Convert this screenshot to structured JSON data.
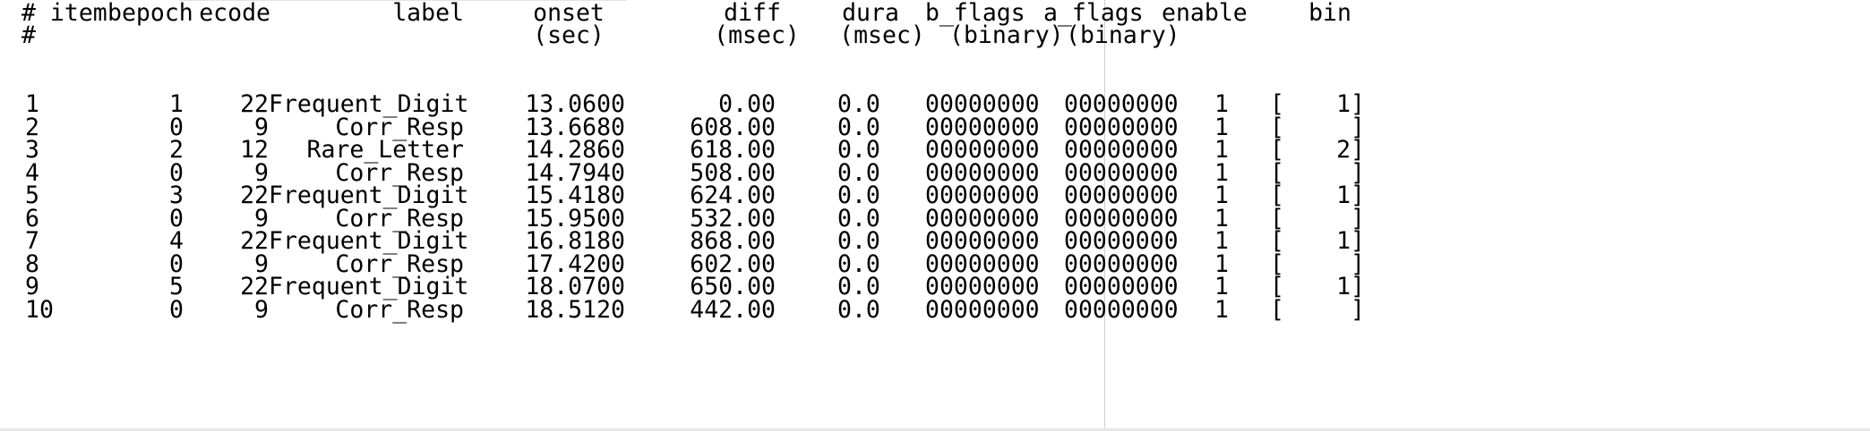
{
  "header": {
    "row1": {
      "item": "# item",
      "bepoch": "bepoch",
      "ecode": "ecode",
      "label": "label",
      "onset": "onset",
      "diff": "diff",
      "dura": "dura",
      "b_flags": "b_flags",
      "a_flags": "a_flags",
      "enable": "enable",
      "bin": "bin"
    },
    "row2": {
      "item": "#",
      "onset": "(sec)",
      "diff": "(msec)",
      "dura": "(msec)",
      "b_flags": "(binary)",
      "a_flags": "(binary)"
    }
  },
  "rows": [
    {
      "item": "1",
      "bepoch": "1",
      "ecode": "22",
      "label": "Frequent_Digit",
      "onset": "13.0600",
      "diff": "0.00",
      "dura": "0.0",
      "b_flags": "00000000",
      "a_flags": "00000000",
      "enable": "1",
      "bin_open": "[",
      "bin_val": "1]"
    },
    {
      "item": "2",
      "bepoch": "0",
      "ecode": "9",
      "label": "Corr_Resp",
      "onset": "13.6680",
      "diff": "608.00",
      "dura": "0.0",
      "b_flags": "00000000",
      "a_flags": "00000000",
      "enable": "1",
      "bin_open": "[",
      "bin_val": "]"
    },
    {
      "item": "3",
      "bepoch": "2",
      "ecode": "12",
      "label": "Rare_Letter",
      "onset": "14.2860",
      "diff": "618.00",
      "dura": "0.0",
      "b_flags": "00000000",
      "a_flags": "00000000",
      "enable": "1",
      "bin_open": "[",
      "bin_val": "2]"
    },
    {
      "item": "4",
      "bepoch": "0",
      "ecode": "9",
      "label": "Corr_Resp",
      "onset": "14.7940",
      "diff": "508.00",
      "dura": "0.0",
      "b_flags": "00000000",
      "a_flags": "00000000",
      "enable": "1",
      "bin_open": "[",
      "bin_val": "]"
    },
    {
      "item": "5",
      "bepoch": "3",
      "ecode": "22",
      "label": "Frequent_Digit",
      "onset": "15.4180",
      "diff": "624.00",
      "dura": "0.0",
      "b_flags": "00000000",
      "a_flags": "00000000",
      "enable": "1",
      "bin_open": "[",
      "bin_val": "1]"
    },
    {
      "item": "6",
      "bepoch": "0",
      "ecode": "9",
      "label": "Corr_Resp",
      "onset": "15.9500",
      "diff": "532.00",
      "dura": "0.0",
      "b_flags": "00000000",
      "a_flags": "00000000",
      "enable": "1",
      "bin_open": "[",
      "bin_val": "]"
    },
    {
      "item": "7",
      "bepoch": "4",
      "ecode": "22",
      "label": "Frequent_Digit",
      "onset": "16.8180",
      "diff": "868.00",
      "dura": "0.0",
      "b_flags": "00000000",
      "a_flags": "00000000",
      "enable": "1",
      "bin_open": "[",
      "bin_val": "1]"
    },
    {
      "item": "8",
      "bepoch": "0",
      "ecode": "9",
      "label": "Corr_Resp",
      "onset": "17.4200",
      "diff": "602.00",
      "dura": "0.0",
      "b_flags": "00000000",
      "a_flags": "00000000",
      "enable": "1",
      "bin_open": "[",
      "bin_val": "]"
    },
    {
      "item": "9",
      "bepoch": "5",
      "ecode": "22",
      "label": "Frequent_Digit",
      "onset": "18.0700",
      "diff": "650.00",
      "dura": "0.0",
      "b_flags": "00000000",
      "a_flags": "00000000",
      "enable": "1",
      "bin_open": "[",
      "bin_val": "1]"
    },
    {
      "item": "10",
      "bepoch": "0",
      "ecode": "9",
      "label": "Corr_Resp",
      "onset": "18.5120",
      "diff": "442.00",
      "dura": "0.0",
      "b_flags": "00000000",
      "a_flags": "00000000",
      "enable": "1",
      "bin_open": "[",
      "bin_val": "]"
    }
  ]
}
